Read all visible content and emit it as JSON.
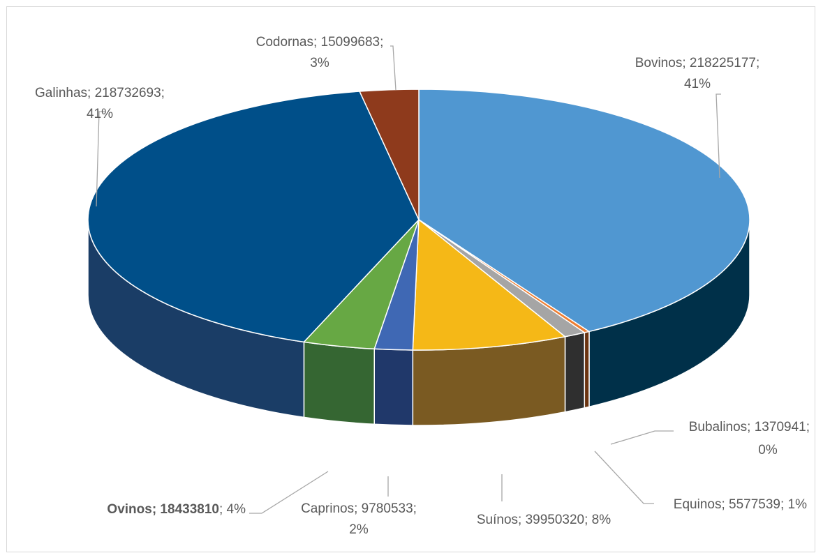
{
  "chart_data": {
    "type": "pie",
    "style": "3d",
    "title": "",
    "series": [
      {
        "name": "",
        "values": [
          218225177,
          1370941,
          5577539,
          39950320,
          9780533,
          18433810,
          218732693,
          15099683
        ]
      }
    ],
    "categories": [
      "Bovinos",
      "Bubalinos",
      "Equinos",
      "Suínos",
      "Caprinos",
      "Ovinos",
      "Galinhas",
      "Codornas"
    ],
    "slices": [
      {
        "name": "Bovinos",
        "value": 218225177,
        "percent": "41%",
        "color": "#5097d1",
        "side": "#003049"
      },
      {
        "name": "Bubalinos",
        "value": 1370941,
        "percent": "0%",
        "color": "#ed7d31",
        "side": "#6b3410"
      },
      {
        "name": "Equinos",
        "value": 5577539,
        "percent": "1%",
        "color": "#a5a5a5",
        "side": "#2f2f2f"
      },
      {
        "name": "Suínos",
        "value": 39950320,
        "percent": "8%",
        "color": "#f5b817",
        "side": "#7a5a22"
      },
      {
        "name": "Caprinos",
        "value": 9780533,
        "percent": "2%",
        "color": "#3f68b4",
        "side": "#20386a"
      },
      {
        "name": "Ovinos",
        "value": 18433810,
        "percent": "4%",
        "color": "#67a844",
        "side": "#356632"
      },
      {
        "name": "Galinhas",
        "value": 218732693,
        "percent": "41%",
        "color": "#004f89",
        "side": "#1a3d66"
      },
      {
        "name": "Codornas",
        "value": 15099683,
        "percent": "3%",
        "color": "#8e3a1c",
        "side": "#4d200f"
      }
    ],
    "labels": {
      "Bovinos": {
        "line1": "Bovinos; 218225177;",
        "line2": "41%"
      },
      "Bubalinos": {
        "line1": "Bubalinos; 1370941;",
        "line2": "0%"
      },
      "Equinos": {
        "line1": "Equinos; 5577539; 1%",
        "line2": ""
      },
      "Suínos": {
        "line1": "Suínos; 39950320; 8%",
        "line2": ""
      },
      "Caprinos": {
        "line1": "Caprinos; 9780533;",
        "line2": "2%"
      },
      "Ovinos": {
        "line1_bold": "Ovinos; 18433810",
        "line1_rest": "; 4%"
      },
      "Galinhas": {
        "line1": "Galinhas; 218732693;",
        "line2": "41%"
      },
      "Codornas": {
        "line1": "Codornas; 15099683;",
        "line2": "3%"
      }
    },
    "legend": "none",
    "data_labels": "outside with leader lines"
  }
}
